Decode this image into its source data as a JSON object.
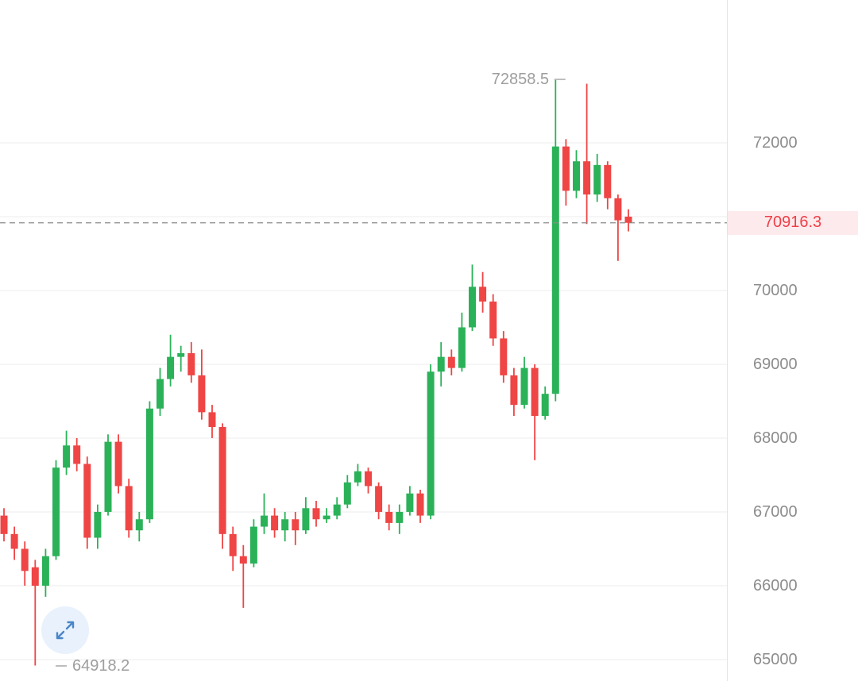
{
  "chart_data": {
    "type": "candlestick",
    "title": "",
    "high_label": {
      "text": "72858.5",
      "value": 72858.5
    },
    "low_label": {
      "text": "64918.2",
      "value": 64918.2
    },
    "current_price": {
      "text": "70916.3",
      "value": 70916.3
    },
    "y_axis": {
      "position": "right",
      "grid": true,
      "price_at_top": 73935,
      "price_at_bottom": 64709,
      "grid_values": [
        72000,
        71000,
        70000,
        69000,
        68000,
        67000,
        66000,
        65000
      ],
      "labels": [
        {
          "text": "72000",
          "value": 72000
        },
        {
          "text": "70000",
          "value": 70000
        },
        {
          "text": "69000",
          "value": 69000
        },
        {
          "text": "68000",
          "value": 68000
        },
        {
          "text": "67000",
          "value": 67000
        },
        {
          "text": "66000",
          "value": 66000
        },
        {
          "text": "65000",
          "value": 65000
        }
      ]
    },
    "candles_format": [
      "open",
      "high",
      "low",
      "close"
    ],
    "candles": [
      [
        66950,
        67050,
        66600,
        66700
      ],
      [
        66700,
        66800,
        66350,
        66500
      ],
      [
        66500,
        66600,
        66000,
        66200
      ],
      [
        66250,
        66350,
        64918.2,
        66000
      ],
      [
        66000,
        66500,
        65850,
        66400
      ],
      [
        66400,
        67700,
        66350,
        67600
      ],
      [
        67600,
        68100,
        67500,
        67900
      ],
      [
        67900,
        68000,
        67550,
        67650
      ],
      [
        67650,
        67750,
        66500,
        66650
      ],
      [
        66650,
        67100,
        66500,
        67000
      ],
      [
        67000,
        68050,
        66950,
        67950
      ],
      [
        67950,
        68050,
        67250,
        67350
      ],
      [
        67350,
        67450,
        66650,
        66750
      ],
      [
        66750,
        67000,
        66600,
        66900
      ],
      [
        66900,
        68500,
        66850,
        68400
      ],
      [
        68400,
        68950,
        68300,
        68800
      ],
      [
        68800,
        69400,
        68700,
        69100
      ],
      [
        69100,
        69250,
        68900,
        69150
      ],
      [
        69150,
        69300,
        68750,
        68850
      ],
      [
        68850,
        69200,
        68250,
        68350
      ],
      [
        68350,
        68450,
        68000,
        68150
      ],
      [
        68150,
        68200,
        66500,
        66700
      ],
      [
        66700,
        66800,
        66200,
        66400
      ],
      [
        66400,
        66550,
        65700,
        66300
      ],
      [
        66300,
        66900,
        66250,
        66800
      ],
      [
        66800,
        67250,
        66700,
        66950
      ],
      [
        66950,
        67050,
        66650,
        66750
      ],
      [
        66750,
        67000,
        66600,
        66900
      ],
      [
        66900,
        67000,
        66550,
        66750
      ],
      [
        66750,
        67200,
        66700,
        67050
      ],
      [
        67050,
        67150,
        66800,
        66900
      ],
      [
        66900,
        67050,
        66850,
        66950
      ],
      [
        66950,
        67200,
        66900,
        67100
      ],
      [
        67100,
        67500,
        67050,
        67400
      ],
      [
        67400,
        67650,
        67350,
        67550
      ],
      [
        67550,
        67600,
        67250,
        67350
      ],
      [
        67350,
        67400,
        66900,
        67000
      ],
      [
        67000,
        67100,
        66750,
        66850
      ],
      [
        66850,
        67100,
        66700,
        67000
      ],
      [
        67000,
        67350,
        66950,
        67250
      ],
      [
        67250,
        67300,
        66850,
        66950
      ],
      [
        66950,
        69000,
        66900,
        68900
      ],
      [
        68900,
        69300,
        68700,
        69100
      ],
      [
        69100,
        69200,
        68850,
        68950
      ],
      [
        68950,
        69700,
        68900,
        69500
      ],
      [
        69500,
        70350,
        69450,
        70050
      ],
      [
        70050,
        70250,
        69700,
        69850
      ],
      [
        69850,
        69950,
        69250,
        69350
      ],
      [
        69350,
        69450,
        68750,
        68850
      ],
      [
        68850,
        68950,
        68300,
        68450
      ],
      [
        68450,
        69100,
        68400,
        68950
      ],
      [
        68950,
        69000,
        67700,
        68300
      ],
      [
        68300,
        68700,
        68250,
        68600
      ],
      [
        68600,
        72858.5,
        68500,
        71950
      ],
      [
        71950,
        72050,
        71150,
        71350
      ],
      [
        71350,
        71900,
        71250,
        71750
      ],
      [
        71750,
        72800,
        70900,
        71300
      ],
      [
        71300,
        71850,
        71200,
        71700
      ],
      [
        71700,
        71750,
        71100,
        71250
      ],
      [
        71250,
        71300,
        70400,
        70950
      ],
      [
        71000,
        71100,
        70800,
        70916.3
      ]
    ],
    "colors": {
      "up": "#2bb259",
      "down": "#ef4545",
      "grid": "#ededed",
      "separator": "#e4e4e4",
      "axis_text": "#8c8c8c",
      "minmax_text": "#9e9e9e",
      "minmax_dash": "#bdbdbd",
      "price_line": "#8a8a8a",
      "price_badge_bg": "#fdeaec",
      "price_badge_text": "#ef3e46",
      "expand_bg": "#e8f1fc",
      "expand_arrow": "#4a86c8"
    }
  },
  "expand_button": {
    "icon": "expand-arrows-icon"
  }
}
